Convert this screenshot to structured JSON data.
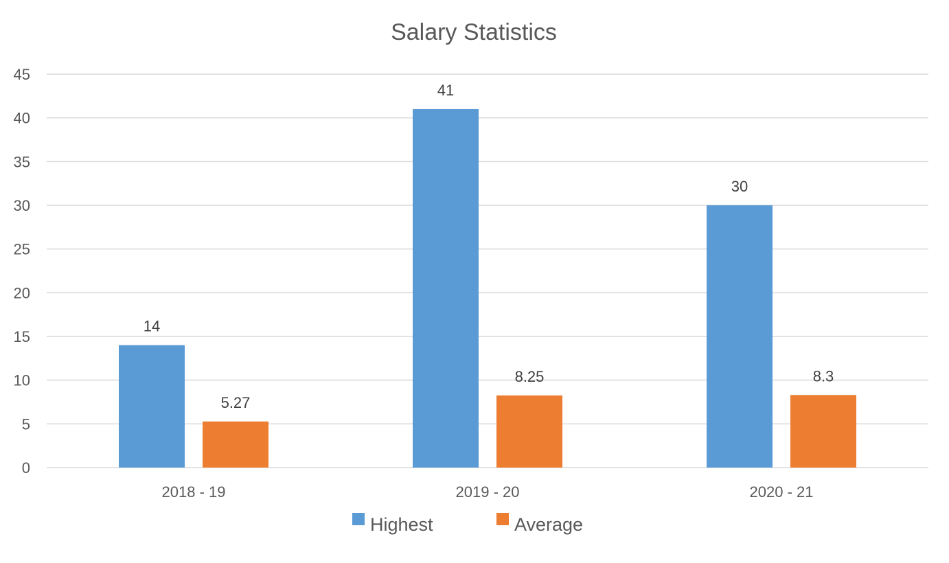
{
  "chart_data": {
    "type": "bar",
    "title": "Salary Statistics",
    "xlabel": "",
    "ylabel": "",
    "categories": [
      "2018 - 19",
      "2019 - 20",
      "2020 - 21"
    ],
    "series": [
      {
        "name": "Highest",
        "values": [
          14,
          41,
          30
        ],
        "labels": [
          "14",
          "41",
          "30"
        ],
        "color": "#5b9bd5"
      },
      {
        "name": "Average",
        "values": [
          5.27,
          8.25,
          8.3
        ],
        "labels": [
          "5.27",
          "8.25",
          "8.3"
        ],
        "color": "#ed7d31"
      }
    ],
    "ylim": [
      0,
      45
    ],
    "yticks": [
      "0",
      "5",
      "10",
      "15",
      "20",
      "25",
      "30",
      "35",
      "40",
      "45"
    ],
    "grid": true,
    "legend_position": "bottom"
  }
}
